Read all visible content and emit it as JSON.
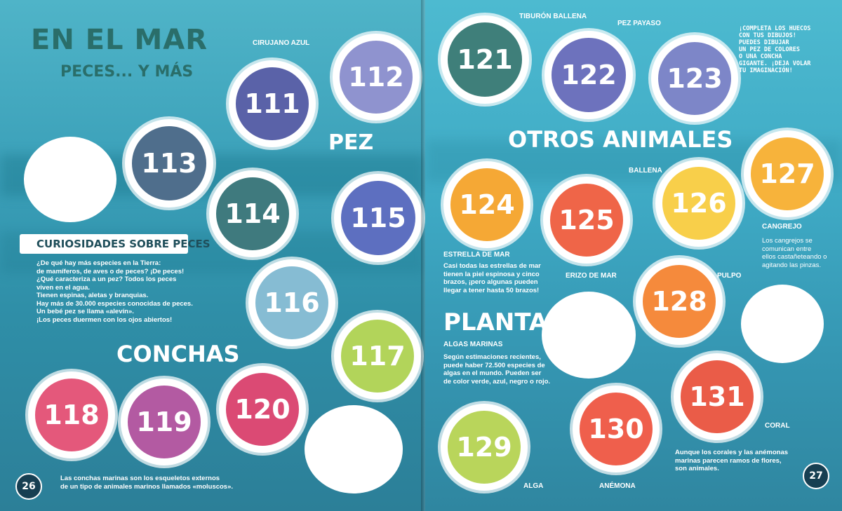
{
  "left": {
    "title_main": "EN EL MAR",
    "title_sub": "PECES... Y MÁS",
    "section_pez": "PEZ",
    "section_conchas": "CONCHAS",
    "curiosidades_title": "CURIOSIDADES SOBRE PECES",
    "curiosidades_lines": [
      "¿De qué hay más especies en la Tierra:",
      "de mamíferos, de aves o de peces? ¡De peces!",
      "¿Qué caracteriza a un pez? Todos los peces",
      "viven en el agua.",
      "Tienen espinas, aletas y branquias.",
      "Hay más de 30.000 especies conocidas de peces.",
      "Un bebé pez se llama «alevín».",
      "¡Los peces duermen con los ojos abiertos!"
    ],
    "conchas_lines": [
      "Las conchas marinas son los esqueletos externos",
      "de un tipo de animales marinos llamados «moluscos»."
    ],
    "label_cirujano": "CIRUJANO AZUL",
    "page_number": "26",
    "stickers": {
      "s111": "111",
      "s112": "112",
      "s113": "113",
      "s114": "114",
      "s115": "115",
      "s116": "116",
      "s117": "117",
      "s118": "118",
      "s119": "119",
      "s120": "120"
    }
  },
  "right": {
    "label_tiburon": "TIBURÓN BALLENA",
    "label_payaso": "PEZ PAYASO",
    "note_lines": [
      "¡COMPLETA LOS HUECOS",
      "CON TUS DIBUJOS!",
      "PUEDES DIBUJAR",
      "UN PEZ DE COLORES",
      "O UNA CONCHA",
      "GIGANTE. ¡DEJA VOLAR",
      "TU IMAGINACIÓN!"
    ],
    "section_otros": "OTROS ANIMALES",
    "label_ballena": "BALLENA",
    "label_cangrejo": "CANGREJO",
    "cangrejo_lines": [
      "Los cangrejos se",
      "comunican entre",
      "ellos castañeteando o",
      "agitando las pinzas."
    ],
    "label_estrella": "ESTRELLA DE MAR",
    "estrella_lines": [
      "Casi todas las estrellas de mar",
      "tienen la piel espinosa y cinco",
      "brazos, ¡pero algunas pueden",
      "llegar a tener hasta 50 brazos!"
    ],
    "label_erizo": "ERIZO DE MAR",
    "label_pulpo": "PULPO",
    "section_plantas": "PLANTAS",
    "label_algas": "ALGAS MARINAS",
    "algas_lines": [
      "Según estimaciones recientes,",
      "puede haber 72.500 especies de",
      "algas en el mundo. Pueden ser",
      "de color verde, azul, negro o rojo."
    ],
    "label_coral": "CORAL",
    "coral_lines": [
      "Aunque los corales y las anémonas",
      "marinas parecen ramos de flores,",
      "son animales."
    ],
    "label_alga": "ALGA",
    "label_anemona": "ANÉMONA",
    "page_number": "27",
    "stickers": {
      "s121": "121",
      "s122": "122",
      "s123": "123",
      "s124": "124",
      "s125": "125",
      "s126": "126",
      "s127": "127",
      "s128": "128",
      "s129": "129",
      "s130": "130",
      "s131": "131"
    }
  },
  "colors": {
    "c111": "#5a62a8",
    "c112": "#8f93cf",
    "c113": "#4f6e8c",
    "c114": "#3f7a7e",
    "c115": "#5d6fc0",
    "c116": "#86bcd3",
    "c117": "#b2d45a",
    "c118": "#e4587b",
    "c119": "#b35aa2",
    "c120": "#db4a74",
    "c121": "#3f7f7a",
    "c122": "#6d72bd",
    "c123": "#7d86c8",
    "c124": "#f5a835",
    "c125": "#ef6548",
    "c126": "#f8cf4a",
    "c127": "#f7b33b",
    "c128": "#f58a3c",
    "c129": "#b9d55b",
    "c130": "#ef5f4c",
    "c131": "#ea5c48"
  }
}
